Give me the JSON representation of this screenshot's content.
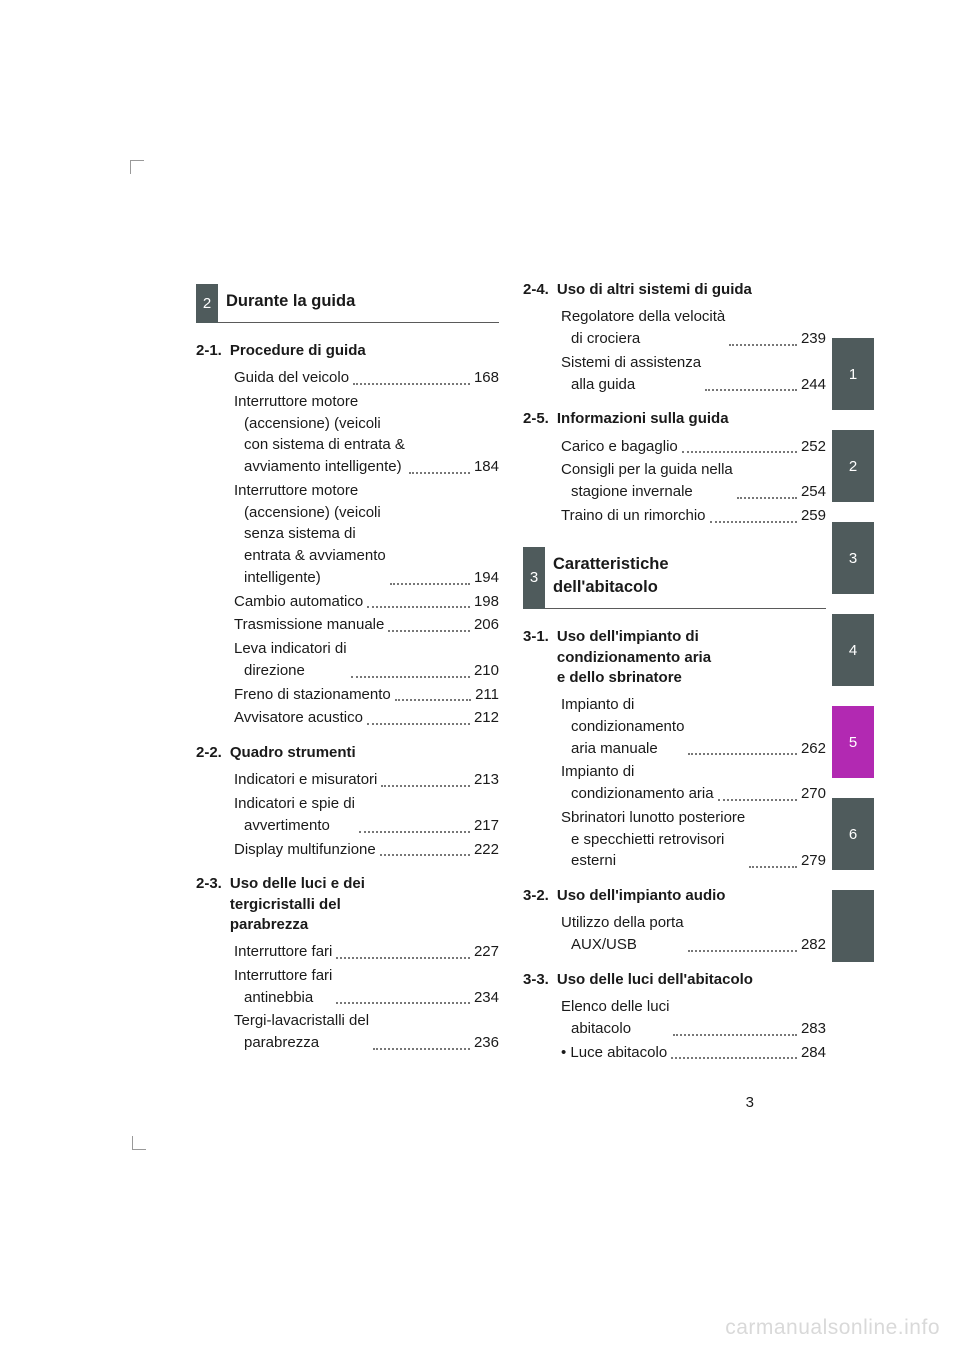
{
  "page_number": "3",
  "watermark": "carmanualsonline.info",
  "colors": {
    "tab_grey": "#4f5b5c",
    "tab_magenta": "#b229b2",
    "text": "#1a1a1a",
    "watermark": "#d9d9d9"
  },
  "tabs": [
    {
      "label": "1",
      "color": "#4f5b5c"
    },
    {
      "label": "2",
      "color": "#4f5b5c"
    },
    {
      "label": "3",
      "color": "#4f5b5c"
    },
    {
      "label": "4",
      "color": "#4f5b5c"
    },
    {
      "label": "5",
      "color": "#b229b2"
    },
    {
      "label": "6",
      "color": "#4f5b5c"
    },
    {
      "label": "",
      "color": "#4f5b5c"
    }
  ],
  "left": {
    "chapter": {
      "num": "2",
      "title": "Durante la guida"
    },
    "sections": [
      {
        "num": "2-1.",
        "title": "Procedure di guida",
        "entries": [
          {
            "label": "Guida del veicolo",
            "page": "168"
          },
          {
            "label": "Interruttore motore (accensione) (veicoli con sistema di entrata & avviamento intelligente)",
            "page": "184",
            "multi": [
              "Interruttore motore",
              "(accensione) (veicoli",
              "con sistema di entrata &",
              "avviamento intelligente)"
            ]
          },
          {
            "label": "Interruttore motore (accensione) (veicoli senza sistema di entrata & avviamento intelligente)",
            "page": "194",
            "multi": [
              "Interruttore motore",
              "(accensione) (veicoli",
              "senza sistema di",
              "entrata & avviamento",
              "intelligente)"
            ]
          },
          {
            "label": "Cambio automatico",
            "page": "198"
          },
          {
            "label": "Trasmissione manuale",
            "page": "206"
          },
          {
            "label": "Leva indicatori di direzione",
            "page": "210",
            "multi": [
              "Leva indicatori di",
              "direzione"
            ]
          },
          {
            "label": "Freno di stazionamento",
            "page": "211"
          },
          {
            "label": "Avvisatore acustico",
            "page": "212"
          }
        ]
      },
      {
        "num": "2-2.",
        "title": "Quadro strumenti",
        "entries": [
          {
            "label": "Indicatori e misuratori",
            "page": "213"
          },
          {
            "label": "Indicatori e spie di avvertimento",
            "page": "217",
            "multi": [
              "Indicatori e spie di",
              "avvertimento"
            ]
          },
          {
            "label": "Display multifunzione",
            "page": "222"
          }
        ]
      },
      {
        "num": "2-3.",
        "title": "Uso delle luci e dei tergicristalli del parabrezza",
        "title_multi": [
          "Uso delle luci e dei",
          "tergicristalli del",
          "parabrezza"
        ],
        "entries": [
          {
            "label": "Interruttore fari",
            "page": "227"
          },
          {
            "label": "Interruttore fari antinebbia",
            "page": "234",
            "multi": [
              "Interruttore fari",
              "antinebbia"
            ]
          },
          {
            "label": "Tergi-lavacristalli del parabrezza",
            "page": "236",
            "multi": [
              "Tergi-lavacristalli del",
              "parabrezza"
            ]
          }
        ]
      }
    ]
  },
  "right": {
    "sections_before_chapter": [
      {
        "num": "2-4.",
        "title": "Uso di altri sistemi di guida",
        "entries": [
          {
            "label": "Regolatore della velocità di crociera",
            "page": "239",
            "multi": [
              "Regolatore della velocità",
              "di crociera"
            ]
          },
          {
            "label": "Sistemi di assistenza alla guida",
            "page": "244",
            "multi": [
              "Sistemi di assistenza",
              "alla guida"
            ]
          }
        ]
      },
      {
        "num": "2-5.",
        "title": "Informazioni sulla guida",
        "entries": [
          {
            "label": "Carico e bagaglio",
            "page": "252"
          },
          {
            "label": "Consigli per la guida nella stagione invernale",
            "page": "254",
            "multi": [
              "Consigli per la guida nella",
              "stagione invernale"
            ]
          },
          {
            "label": "Traino di un rimorchio",
            "page": "259"
          }
        ]
      }
    ],
    "chapter": {
      "num": "3",
      "title": "Caratteristiche dell'abitacolo",
      "title_multi": [
        "Caratteristiche",
        "dell'abitacolo"
      ]
    },
    "sections": [
      {
        "num": "3-1.",
        "title": "Uso dell'impianto di condizionamento aria e dello sbrinatore",
        "title_multi": [
          "Uso dell'impianto di",
          "condizionamento aria",
          "e dello sbrinatore"
        ],
        "entries": [
          {
            "label": "Impianto di condizionamento aria manuale",
            "page": "262",
            "multi": [
              "Impianto di",
              "condizionamento",
              "aria manuale"
            ]
          },
          {
            "label": "Impianto di condizionamento aria",
            "page": "270",
            "multi": [
              "Impianto di",
              "condizionamento aria"
            ]
          },
          {
            "label": "Sbrinatori lunotto posteriore e specchietti retrovisori esterni",
            "page": "279",
            "multi": [
              "Sbrinatori lunotto posteriore",
              "e specchietti retrovisori",
              "esterni"
            ]
          }
        ]
      },
      {
        "num": "3-2.",
        "title": "Uso dell'impianto audio",
        "entries": [
          {
            "label": "Utilizzo della porta AUX/USB",
            "page": "282",
            "multi": [
              "Utilizzo della porta",
              "AUX/USB"
            ]
          }
        ]
      },
      {
        "num": "3-3.",
        "title": "Uso delle luci dell'abitacolo",
        "entries": [
          {
            "label": "Elenco delle luci abitacolo",
            "page": "283",
            "multi": [
              "Elenco delle luci",
              "abitacolo"
            ]
          },
          {
            "label": "Luce abitacolo",
            "page": "284",
            "bullet": true
          }
        ]
      }
    ]
  }
}
